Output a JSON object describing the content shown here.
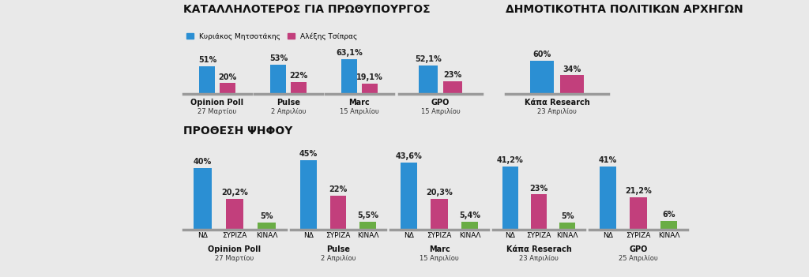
{
  "chart_data": [
    {
      "type": "bar",
      "title": "Opinion Poll",
      "subtitle": "27 Μαρτίου",
      "annotations": [
        "ΚΑΤΑΛΛΗΛΟΤΕΡΟΣ ΓΙΑ ΠΡΩΘΥΠΟΥΡΓΟΣ"
      ],
      "legend": "upper left",
      "categories": [
        null
      ],
      "series": [
        {
          "name": "Κυριάκος Μητσοτάκης",
          "color": "#2b8fd3",
          "values": [
            51
          ],
          "value_labels": [
            "51%"
          ]
        },
        {
          "name": "Αλέξης Τσίπρας",
          "color": "#c23f7c",
          "values": [
            20
          ],
          "value_labels": [
            "20%"
          ]
        }
      ],
      "ylim": [
        0,
        75
      ],
      "tick_labels": false,
      "data_labels": true,
      "grid": false
    },
    {
      "type": "bar",
      "title": "Pulse",
      "subtitle": "2 Απριλίου",
      "categories": [
        null
      ],
      "series": [
        {
          "name": "Κυριάκος Μητσοτάκης",
          "color": "#2b8fd3",
          "values": [
            53
          ],
          "value_labels": [
            "53%"
          ]
        },
        {
          "name": "Αλέξης Τσίπρας",
          "color": "#c23f7c",
          "values": [
            22
          ],
          "value_labels": [
            "22%"
          ]
        }
      ],
      "ylim": [
        0,
        75
      ],
      "tick_labels": false,
      "data_labels": true,
      "grid": false
    },
    {
      "type": "bar",
      "title": "Marc",
      "subtitle": "15 Απριλίου",
      "categories": [
        null
      ],
      "series": [
        {
          "name": "Κυριάκος Μητσοτάκης",
          "color": "#2b8fd3",
          "values": [
            63.1
          ],
          "value_labels": [
            "63,1%"
          ]
        },
        {
          "name": "Αλέξης Τσίπρας",
          "color": "#c23f7c",
          "values": [
            19.1
          ],
          "value_labels": [
            "19,1%"
          ]
        }
      ],
      "ylim": [
        0,
        75
      ],
      "tick_labels": false,
      "data_labels": true,
      "grid": false
    },
    {
      "type": "bar",
      "title": "GPO",
      "subtitle": "15 Απριλίου",
      "categories": [
        null
      ],
      "series": [
        {
          "name": "Κυριάκος Μητσοτάκης",
          "color": "#2b8fd3",
          "values": [
            52.1
          ],
          "value_labels": [
            "52,1%"
          ]
        },
        {
          "name": "Αλέξης Τσίπρας",
          "color": "#c23f7c",
          "values": [
            23
          ],
          "value_labels": [
            "23%"
          ]
        }
      ],
      "ylim": [
        0,
        75
      ],
      "tick_labels": false,
      "data_labels": true,
      "grid": false
    },
    {
      "type": "bar",
      "title": "Κάπα Research",
      "subtitle": "23 Απριλίου",
      "annotations": [
        "ΔΗΜΟΤΙΚΟΤΗΤΑ ΠΟΛΙΤΙΚΩΝ ΑΡΧΗΓΩΝ"
      ],
      "categories": [
        null
      ],
      "series": [
        {
          "name": "Κυριάκος Μητσοτάκης",
          "color": "#2b8fd3",
          "values": [
            60
          ],
          "value_labels": [
            "60%"
          ]
        },
        {
          "name": "Αλέξης Τσίπρας",
          "color": "#c23f7c",
          "values": [
            34
          ],
          "value_labels": [
            "34%"
          ]
        }
      ],
      "ylim": [
        0,
        75
      ],
      "tick_labels": false,
      "data_labels": true,
      "grid": false
    },
    {
      "type": "bar",
      "title": "Opinion Poll",
      "subtitle": "27 Μαρτίου",
      "annotations": [
        "ΠΡΟΘΕΣΗ ΨΗΦΟΥ"
      ],
      "categories": [
        "ΝΔ",
        "ΣΥΡΙΖΑ",
        "ΚΙΝΑΛ"
      ],
      "values": [
        40,
        20.2,
        5
      ],
      "value_labels": [
        "40%",
        "20,2%",
        "5%"
      ],
      "colors": [
        "#2b8fd3",
        "#c23f7c",
        "#6aad45"
      ],
      "ylim": [
        0,
        52
      ],
      "tick_labels": "x",
      "data_labels": true,
      "grid": false
    },
    {
      "type": "bar",
      "title": "Pulse",
      "subtitle": "2 Απριλίου",
      "categories": [
        "ΝΔ",
        "ΣΥΡΙΖΑ",
        "ΚΙΝΑΛ"
      ],
      "values": [
        45,
        22,
        5.5
      ],
      "value_labels": [
        "45%",
        "22%",
        "5,5%"
      ],
      "colors": [
        "#2b8fd3",
        "#c23f7c",
        "#6aad45"
      ],
      "ylim": [
        0,
        52
      ],
      "tick_labels": "x",
      "data_labels": true,
      "grid": false
    },
    {
      "type": "bar",
      "title": "Marc",
      "subtitle": "15 Απριλίου",
      "categories": [
        "ΝΔ",
        "ΣΥΡΙΖΑ",
        "ΚΙΝΑΛ"
      ],
      "values": [
        43.6,
        20.3,
        5.4
      ],
      "value_labels": [
        "43,6%",
        "20,3%",
        "5,4%"
      ],
      "colors": [
        "#2b8fd3",
        "#c23f7c",
        "#6aad45"
      ],
      "ylim": [
        0,
        52
      ],
      "tick_labels": "x",
      "data_labels": true,
      "grid": false
    },
    {
      "type": "bar",
      "title": "Κάπα Reserach",
      "subtitle": "23 Απριλίου",
      "categories": [
        "ΝΔ",
        "ΣΥΡΙΖΑ",
        "ΚΙΝΑΛ"
      ],
      "values": [
        41.2,
        23,
        5
      ],
      "value_labels": [
        "41,2%",
        "23%",
        "5%"
      ],
      "colors": [
        "#2b8fd3",
        "#c23f7c",
        "#6aad45"
      ],
      "ylim": [
        0,
        52
      ],
      "tick_labels": "x",
      "data_labels": true,
      "grid": false
    },
    {
      "type": "bar",
      "title": "GPO",
      "subtitle": "25 Απριλίου",
      "categories": [
        "ΝΔ",
        "ΣΥΡΙΖΑ",
        "ΚΙΝΑΛ"
      ],
      "values": [
        41,
        21.2,
        6
      ],
      "value_labels": [
        "41%",
        "21,2%",
        "6%"
      ],
      "colors": [
        "#2b8fd3",
        "#c23f7c",
        "#6aad45"
      ],
      "ylim": [
        0,
        52
      ],
      "tick_labels": "x",
      "data_labels": true,
      "grid": false
    }
  ]
}
